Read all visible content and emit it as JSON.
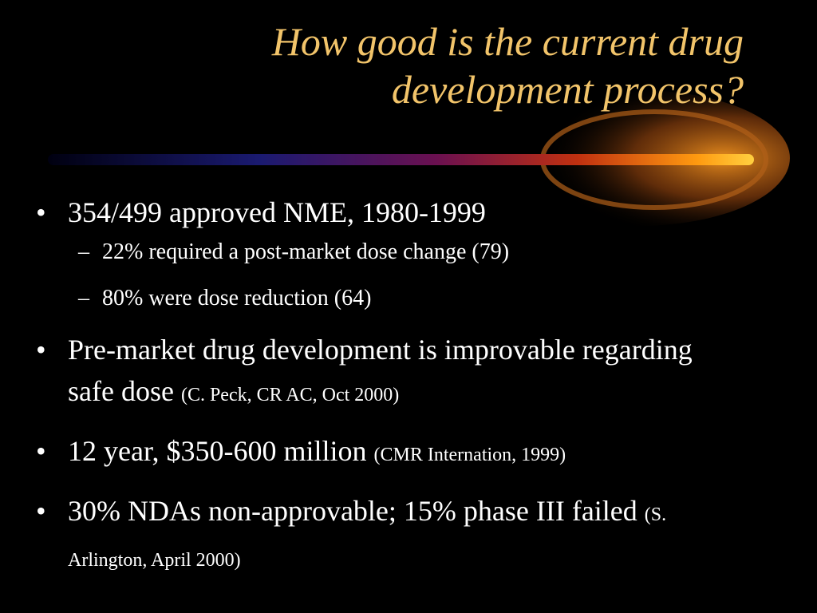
{
  "title": {
    "lines": [
      "How good is the current drug",
      "development process?"
    ]
  },
  "bullets": [
    {
      "text": "354/499 approved NME, 1980-1999",
      "subitems": [
        "22% required a post-market dose change (79)",
        "80% were dose reduction (64)"
      ]
    },
    {
      "text": "Pre-market drug development is improvable regarding safe dose",
      "source": "(C. Peck, CR AC, Oct 2000)"
    },
    {
      "text": "12 year, $350-600 million",
      "source": "(CMR Internation, 1999)"
    },
    {
      "text": "30% NDAs non-approvable; 15% phase III failed",
      "source": "(S. Arlington, April 2000)"
    }
  ]
}
